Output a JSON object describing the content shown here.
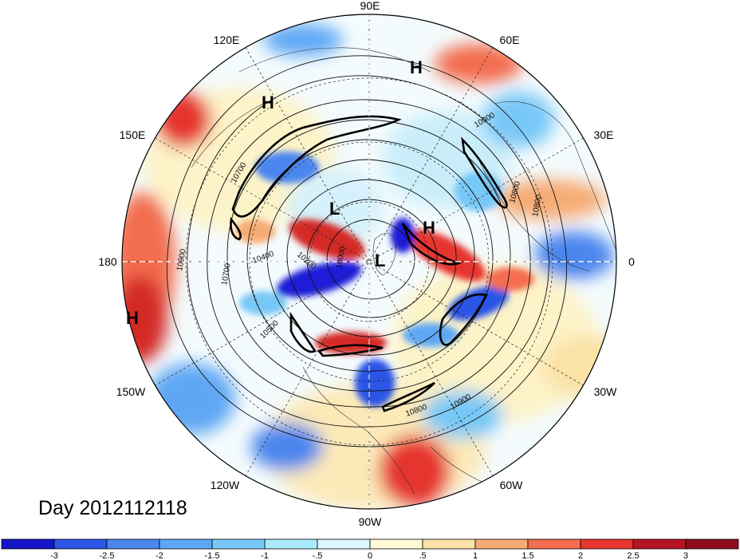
{
  "map": {
    "projection": "north-polar-stereographic",
    "longitude_labels": [
      "90E",
      "60E",
      "30E",
      "0",
      "30W",
      "60W",
      "90W",
      "120W",
      "150W",
      "180",
      "150E",
      "120E"
    ],
    "pressure_centers": [
      {
        "type": "H",
        "near": "northern Siberia"
      },
      {
        "type": "H",
        "near": "Kamchatka"
      },
      {
        "type": "L",
        "near": "Arctic Ocean"
      },
      {
        "type": "H",
        "near": "Scandinavia"
      },
      {
        "type": "L",
        "near": "Greenland"
      },
      {
        "type": "H",
        "near": "North Pacific"
      }
    ],
    "contour_labels": [
      "10900",
      "10800",
      "10700",
      "10400",
      "10200",
      "10000",
      "10700",
      "10500",
      "10800",
      "10900",
      "10900",
      "10800"
    ],
    "field_colors": {
      "strong_negative": "#1c1cd9",
      "negative": "#4e8ff0",
      "weak_negative": "#bfe8f7",
      "neutral": "#ffffff",
      "weak_positive": "#fbdf9f",
      "positive": "#f4503b",
      "strong_positive": "#c4101c"
    }
  },
  "caption": "Day 2012112118",
  "colorbar": {
    "tick_labels": [
      "-3",
      "-2.5",
      "-2",
      "-1.5",
      "-1",
      "-.5",
      "0",
      ".5",
      "1",
      "1.5",
      "2",
      "2.5",
      "3"
    ],
    "colors": [
      "#1515c8",
      "#2c55e6",
      "#4b86ee",
      "#5ea7f4",
      "#78c8f7",
      "#a8eafb",
      "#ddf8fd",
      "#fff9d7",
      "#fbe2a6",
      "#f6ab74",
      "#f36d50",
      "#e6362e",
      "#b71422",
      "#8e0c1b"
    ]
  }
}
